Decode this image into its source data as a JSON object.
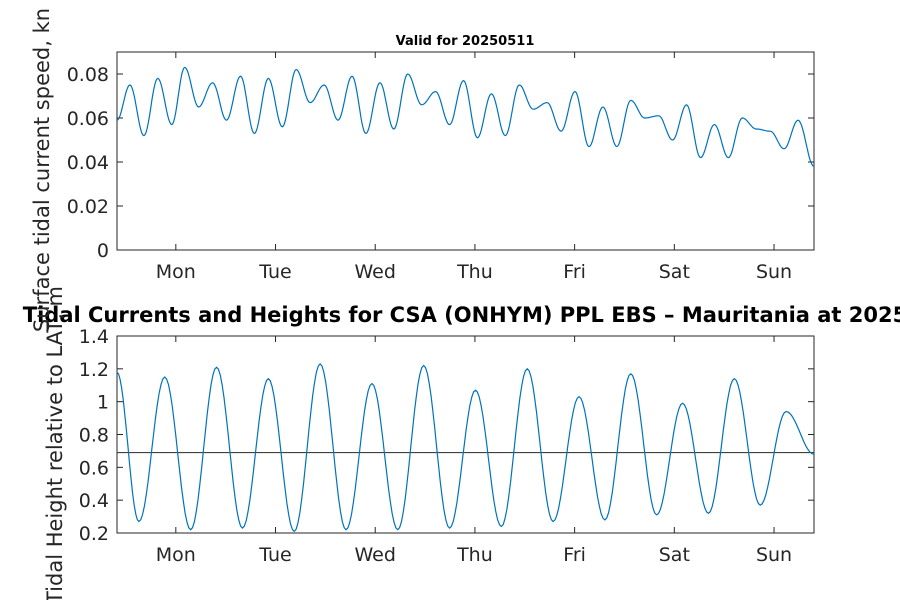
{
  "chart_data": [
    {
      "type": "line",
      "title": "Valid for 20250511",
      "ylabel": "Surface tidal current speed, kn",
      "xlabel": "",
      "x_tick_labels": [
        "Mon",
        "Tue",
        "Wed",
        "Thu",
        "Fri",
        "Sat",
        "Sun"
      ],
      "xlim_days": [
        0,
        7
      ],
      "ylim": [
        0,
        0.09
      ],
      "y_ticks": [
        "0",
        "0.02",
        "0.04",
        "0.06",
        "0.08"
      ],
      "y_tick_values": [
        0,
        0.02,
        0.04,
        0.06,
        0.08
      ],
      "grid": false,
      "series": [
        {
          "color": "#0072bd",
          "x_days": [
            0,
            0.13,
            0.27,
            0.41,
            0.55,
            0.68,
            0.82,
            0.96,
            1.1,
            1.24,
            1.38,
            1.52,
            1.66,
            1.8,
            1.94,
            2.08,
            2.22,
            2.36,
            2.5,
            2.64,
            2.78,
            2.92,
            3.06,
            3.2,
            3.34,
            3.48,
            3.62,
            3.76,
            3.9,
            4.04,
            4.18,
            4.32,
            4.46,
            4.6,
            4.74,
            4.88,
            5.02,
            5.16,
            5.3,
            5.44,
            5.58,
            5.72,
            5.86,
            6.0,
            6.14,
            6.28,
            6.42,
            6.56,
            6.7,
            6.84,
            7.0
          ],
          "values": [
            0.059,
            0.075,
            0.052,
            0.078,
            0.057,
            0.083,
            0.065,
            0.076,
            0.059,
            0.079,
            0.053,
            0.078,
            0.056,
            0.082,
            0.067,
            0.075,
            0.059,
            0.079,
            0.053,
            0.076,
            0.055,
            0.08,
            0.066,
            0.072,
            0.057,
            0.077,
            0.051,
            0.071,
            0.052,
            0.075,
            0.064,
            0.067,
            0.054,
            0.072,
            0.047,
            0.065,
            0.047,
            0.068,
            0.06,
            0.061,
            0.05,
            0.066,
            0.042,
            0.057,
            0.042,
            0.06,
            0.055,
            0.054,
            0.046,
            0.059,
            0.038
          ]
        }
      ]
    },
    {
      "type": "line",
      "title": "Tidal Currents and Heights for CSA (ONHYM) PPL EBS  – Mauritania at 2025",
      "ylabel": "Tidal Height relative to LAT, m",
      "xlabel": "",
      "x_tick_labels": [
        "Mon",
        "Tue",
        "Wed",
        "Thu",
        "Fri",
        "Sat",
        "Sun"
      ],
      "xlim_days": [
        0,
        7
      ],
      "ylim": [
        0.2,
        1.4
      ],
      "y_ticks": [
        "0.2",
        "0.4",
        "0.6",
        "0.8",
        "1",
        "1.2",
        "1.4"
      ],
      "y_tick_values": [
        0.2,
        0.4,
        0.6,
        0.8,
        1.0,
        1.2,
        1.4
      ],
      "grid": false,
      "reference_line": 0.69,
      "series": [
        {
          "color": "#0072bd",
          "x_days": [
            0,
            0.22,
            0.48,
            0.74,
            1.0,
            1.26,
            1.52,
            1.78,
            2.04,
            2.3,
            2.56,
            2.82,
            3.08,
            3.34,
            3.6,
            3.86,
            4.12,
            4.38,
            4.64,
            4.9,
            5.16,
            5.42,
            5.68,
            5.94,
            6.2,
            6.46,
            6.72,
            7.0
          ],
          "values": [
            1.18,
            0.27,
            1.15,
            0.22,
            1.21,
            0.23,
            1.14,
            0.21,
            1.23,
            0.22,
            1.11,
            0.22,
            1.22,
            0.23,
            1.07,
            0.24,
            1.2,
            0.27,
            1.03,
            0.28,
            1.17,
            0.31,
            0.99,
            0.32,
            1.14,
            0.37,
            0.94,
            0.68
          ]
        }
      ]
    }
  ]
}
